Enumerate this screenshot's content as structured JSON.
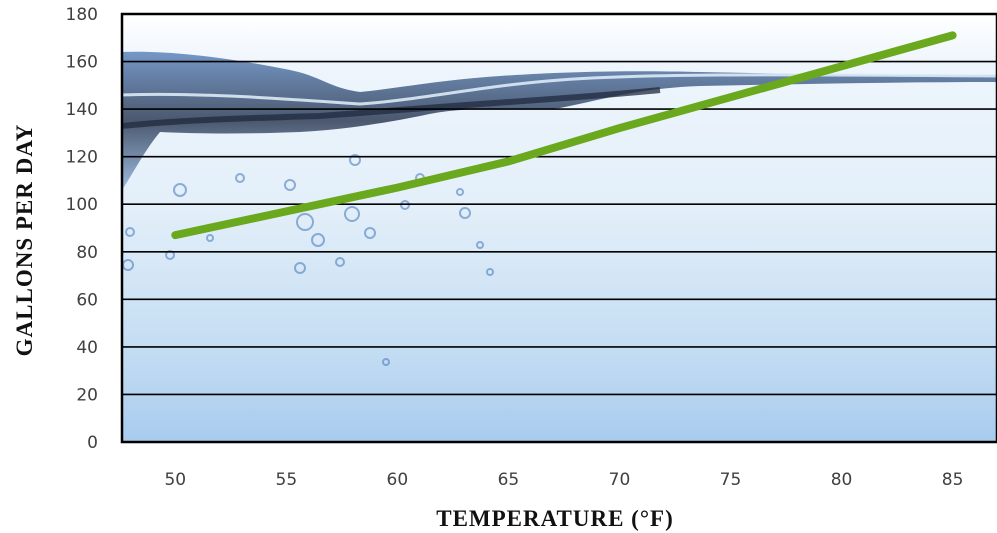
{
  "chart_data": {
    "type": "line",
    "title": "",
    "xlabel": "TEMPERATURE (°F)",
    "ylabel": "GALLONS PER DAY",
    "xlim": [
      47.6,
      87
    ],
    "ylim": [
      0,
      180
    ],
    "x_ticks": [
      50,
      55,
      60,
      65,
      70,
      75,
      80,
      85
    ],
    "y_ticks": [
      0,
      20,
      40,
      60,
      80,
      100,
      120,
      140,
      160,
      180
    ],
    "grid": "horizontal",
    "background": "water-splash-photo",
    "series": [
      {
        "color": "#6aa81e",
        "x": [
          50,
          55,
          60,
          65,
          70,
          75,
          80,
          85
        ],
        "y": [
          87,
          97,
          107,
          118,
          132,
          145,
          158,
          171
        ]
      }
    ]
  }
}
